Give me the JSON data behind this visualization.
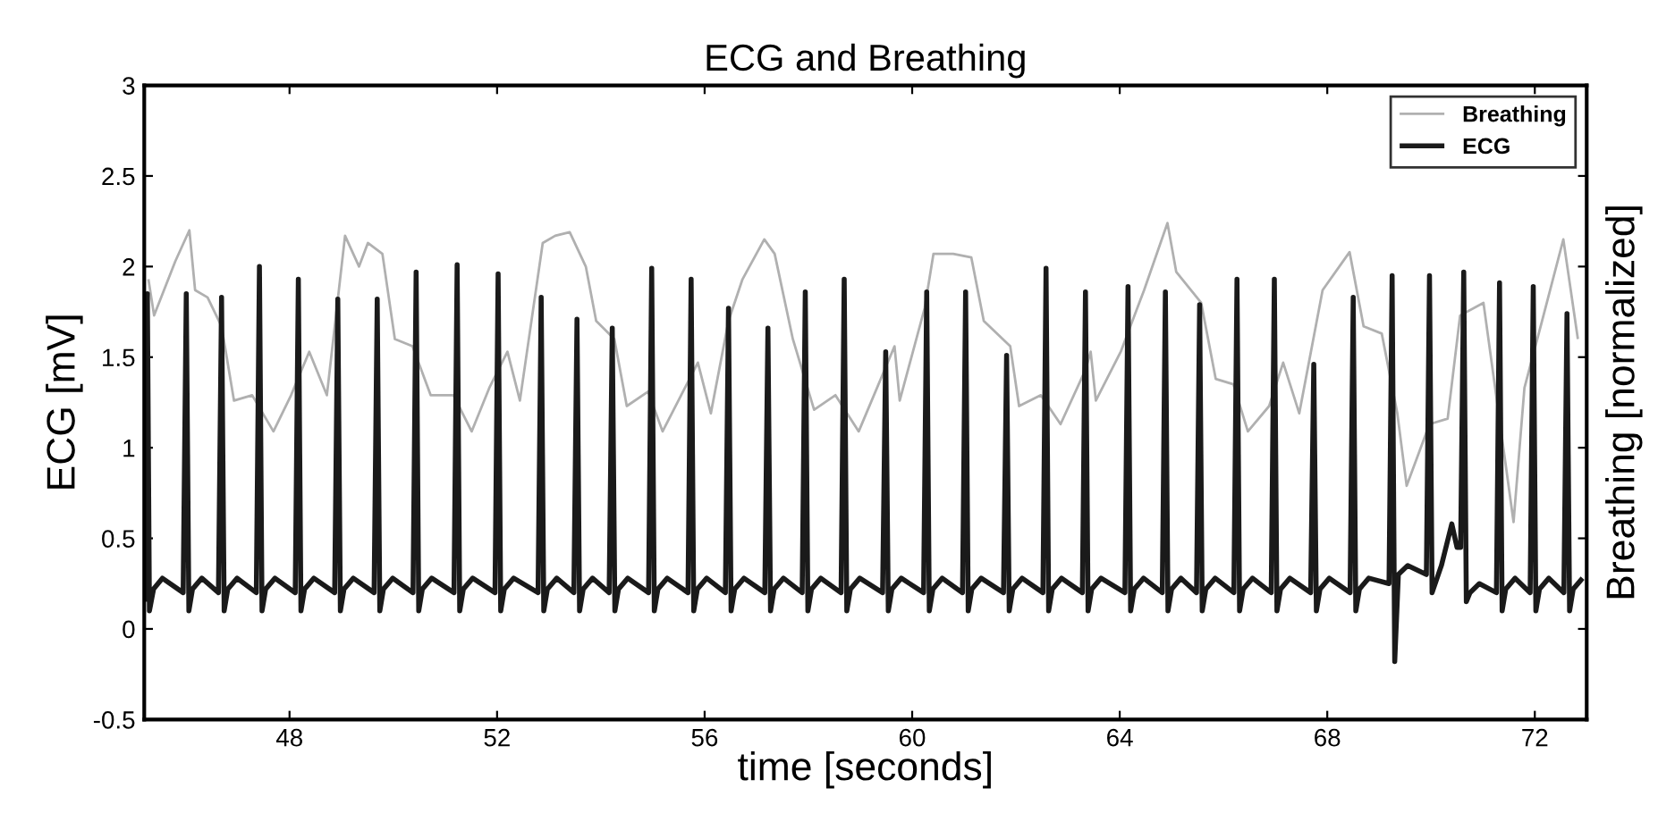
{
  "chart_data": {
    "type": "line",
    "title": "ECG and Breathing",
    "xlabel": "time [seconds]",
    "ylabel": "ECG [mV]",
    "y2label": "Breathing [normalized]",
    "xlim": [
      45.2,
      73.0
    ],
    "xticks": [
      48,
      52,
      56,
      60,
      64,
      68,
      72
    ],
    "ylim": [
      -0.5,
      3
    ],
    "yticks": [
      -0.5,
      0,
      0.5,
      1,
      1.5,
      2,
      2.5,
      3
    ],
    "grid": false,
    "legend": "top right",
    "marker": "none",
    "line_style": "solid",
    "series": [
      {
        "name": "Breathing",
        "color": "#b0b0b0",
        "x": [
          45.28,
          45.39,
          45.8,
          46.07,
          46.18,
          46.42,
          46.69,
          46.93,
          47.28,
          47.69,
          48.03,
          48.38,
          48.72,
          49.07,
          49.34,
          49.51,
          49.79,
          50.03,
          50.37,
          50.72,
          51.16,
          51.51,
          51.85,
          52.2,
          52.44,
          52.88,
          53.12,
          53.4,
          53.71,
          53.91,
          54.26,
          54.5,
          54.91,
          55.19,
          55.53,
          55.87,
          56.12,
          56.46,
          56.73,
          57.15,
          57.35,
          57.7,
          58.11,
          58.52,
          58.97,
          59.66,
          59.76,
          60.24,
          60.41,
          60.79,
          61.14,
          61.38,
          61.89,
          62.06,
          62.48,
          62.86,
          63.34,
          63.44,
          63.54,
          64.02,
          64.47,
          64.92,
          65.09,
          65.57,
          65.85,
          66.19,
          66.47,
          66.88,
          67.15,
          67.46,
          67.91,
          68.43,
          68.7,
          69.05,
          69.35,
          69.53,
          69.97,
          70.32,
          70.56,
          71.01,
          71.59,
          71.8,
          72.14,
          72.55,
          72.83
        ],
        "values": [
          1.93,
          1.73,
          2.03,
          2.2,
          1.87,
          1.83,
          1.67,
          1.26,
          1.29,
          1.09,
          1.29,
          1.53,
          1.29,
          2.17,
          2.0,
          2.13,
          2.07,
          1.6,
          1.56,
          1.29,
          1.29,
          1.09,
          1.33,
          1.53,
          1.26,
          2.13,
          2.17,
          2.19,
          2.0,
          1.7,
          1.6,
          1.23,
          1.31,
          1.09,
          1.28,
          1.47,
          1.19,
          1.7,
          1.93,
          2.15,
          2.07,
          1.6,
          1.21,
          1.29,
          1.09,
          1.56,
          1.26,
          1.77,
          2.07,
          2.07,
          2.05,
          1.7,
          1.56,
          1.23,
          1.29,
          1.13,
          1.43,
          1.53,
          1.26,
          1.53,
          1.87,
          2.24,
          1.97,
          1.8,
          1.38,
          1.35,
          1.09,
          1.23,
          1.47,
          1.19,
          1.87,
          2.08,
          1.67,
          1.63,
          1.19,
          0.79,
          1.13,
          1.16,
          1.73,
          1.8,
          0.59,
          1.33,
          1.7,
          2.15,
          1.6
        ]
      },
      {
        "name": "ECG",
        "color": "#1a1a1a",
        "x": [
          45.21,
          45.26,
          45.3,
          45.38,
          45.55,
          45.95,
          46.01,
          46.06,
          46.13,
          46.31,
          46.63,
          46.69,
          46.74,
          46.81,
          46.99,
          47.36,
          47.42,
          47.47,
          47.54,
          47.72,
          48.11,
          48.17,
          48.22,
          48.29,
          48.47,
          48.87,
          48.93,
          48.98,
          49.05,
          49.23,
          49.63,
          49.69,
          49.74,
          49.81,
          49.99,
          50.38,
          50.44,
          50.49,
          50.56,
          50.74,
          51.17,
          51.23,
          51.28,
          51.35,
          51.53,
          51.96,
          52.02,
          52.07,
          52.14,
          52.32,
          52.79,
          52.85,
          52.9,
          52.97,
          53.15,
          53.48,
          53.54,
          53.59,
          53.66,
          53.84,
          54.16,
          54.22,
          54.27,
          54.34,
          54.52,
          54.92,
          54.98,
          55.03,
          55.1,
          55.28,
          55.68,
          55.74,
          55.79,
          55.86,
          56.04,
          56.4,
          56.46,
          56.51,
          56.58,
          56.76,
          57.16,
          57.22,
          57.27,
          57.34,
          57.52,
          57.88,
          57.94,
          57.99,
          58.06,
          58.24,
          58.63,
          58.69,
          58.74,
          58.81,
          58.99,
          59.43,
          59.49,
          59.54,
          59.61,
          59.79,
          60.22,
          60.28,
          60.33,
          60.4,
          60.58,
          60.97,
          61.03,
          61.08,
          61.15,
          61.33,
          61.76,
          61.82,
          61.87,
          61.94,
          62.12,
          62.52,
          62.58,
          62.63,
          62.7,
          62.88,
          63.28,
          63.34,
          63.39,
          63.46,
          63.64,
          64.1,
          64.16,
          64.21,
          64.28,
          64.46,
          64.82,
          64.88,
          64.93,
          65.0,
          65.18,
          65.48,
          65.54,
          65.59,
          65.66,
          65.84,
          66.2,
          66.26,
          66.31,
          66.38,
          66.56,
          66.92,
          66.98,
          67.03,
          67.1,
          67.28,
          67.68,
          67.74,
          67.79,
          67.86,
          68.04,
          68.44,
          68.5,
          68.55,
          68.62,
          68.8,
          69.19,
          69.25,
          69.3,
          69.37,
          69.55,
          69.91,
          69.97,
          70.02,
          70.2,
          70.4,
          70.5,
          70.57,
          70.63,
          70.68,
          70.75,
          70.93,
          71.26,
          71.32,
          71.37,
          71.44,
          71.62,
          71.91,
          71.97,
          72.02,
          72.09,
          72.27,
          72.56,
          72.62,
          72.67,
          72.74,
          72.92
        ],
        "values": [
          0.15,
          1.85,
          0.1,
          0.22,
          0.28,
          0.2,
          1.85,
          0.1,
          0.22,
          0.28,
          0.2,
          1.83,
          0.1,
          0.22,
          0.28,
          0.2,
          2.0,
          0.1,
          0.22,
          0.28,
          0.2,
          1.93,
          0.1,
          0.22,
          0.28,
          0.2,
          1.82,
          0.1,
          0.22,
          0.28,
          0.2,
          1.82,
          0.1,
          0.22,
          0.28,
          0.2,
          1.97,
          0.1,
          0.22,
          0.28,
          0.2,
          2.01,
          0.1,
          0.22,
          0.28,
          0.2,
          1.96,
          0.1,
          0.22,
          0.28,
          0.2,
          1.83,
          0.1,
          0.22,
          0.28,
          0.2,
          1.71,
          0.1,
          0.22,
          0.28,
          0.2,
          1.66,
          0.1,
          0.22,
          0.28,
          0.2,
          1.99,
          0.1,
          0.22,
          0.28,
          0.2,
          1.93,
          0.1,
          0.22,
          0.28,
          0.2,
          1.77,
          0.1,
          0.22,
          0.28,
          0.2,
          1.66,
          0.1,
          0.22,
          0.28,
          0.2,
          1.86,
          0.1,
          0.22,
          0.28,
          0.2,
          1.93,
          0.1,
          0.22,
          0.28,
          0.2,
          1.53,
          0.1,
          0.22,
          0.28,
          0.2,
          1.86,
          0.1,
          0.22,
          0.28,
          0.2,
          1.86,
          0.1,
          0.22,
          0.28,
          0.2,
          1.51,
          0.1,
          0.22,
          0.28,
          0.2,
          1.99,
          0.1,
          0.22,
          0.28,
          0.2,
          1.86,
          0.1,
          0.22,
          0.28,
          0.2,
          1.89,
          0.1,
          0.22,
          0.28,
          0.2,
          1.86,
          0.1,
          0.22,
          0.28,
          0.2,
          1.79,
          0.1,
          0.22,
          0.28,
          0.2,
          1.93,
          0.1,
          0.22,
          0.28,
          0.2,
          1.93,
          0.1,
          0.22,
          0.28,
          0.2,
          1.46,
          0.1,
          0.22,
          0.28,
          0.2,
          1.83,
          0.1,
          0.22,
          0.28,
          0.25,
          1.95,
          -0.18,
          0.3,
          0.35,
          0.3,
          1.95,
          0.2,
          0.35,
          0.58,
          0.45,
          0.45,
          1.97,
          0.15,
          0.2,
          0.25,
          0.2,
          1.91,
          0.1,
          0.22,
          0.28,
          0.2,
          1.89,
          0.1,
          0.22,
          0.28,
          0.2,
          1.74,
          0.1,
          0.22,
          0.28
        ]
      }
    ]
  }
}
